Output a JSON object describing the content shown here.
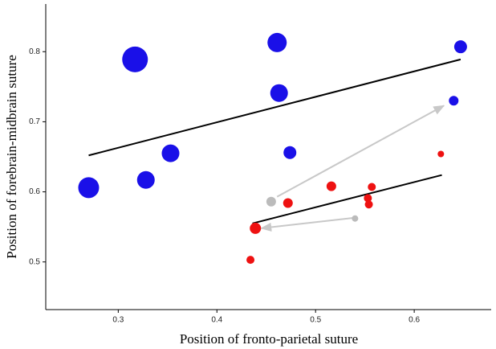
{
  "chart_data": {
    "type": "scatter",
    "x_label": "Position of fronto-parietal suture",
    "y_label": "Position of forebrain-midbrain suture",
    "xlim": [
      0.2265,
      0.678
    ],
    "ylim": [
      0.432,
      0.868
    ],
    "xticks": [
      0.3,
      0.4,
      0.5,
      0.6
    ],
    "yticks": [
      0.5,
      0.6,
      0.7,
      0.8
    ],
    "grid": false,
    "series": [
      {
        "color": "#1a10e8",
        "x": [
          0.27,
          0.317,
          0.328,
          0.353,
          0.461,
          0.463,
          0.474,
          0.647,
          0.64
        ],
        "values": [
          0.606,
          0.789,
          0.617,
          0.655,
          0.813,
          0.741,
          0.656,
          0.807,
          0.73
        ],
        "sizes": [
          13,
          16,
          11,
          11,
          12,
          11,
          8,
          8,
          6
        ]
      },
      {
        "color": "#ee1111",
        "x": [
          0.439,
          0.472,
          0.516,
          0.557,
          0.553,
          0.554,
          0.627,
          0.434
        ],
        "values": [
          0.548,
          0.584,
          0.608,
          0.607,
          0.591,
          0.582,
          0.654,
          0.503
        ],
        "sizes": [
          7,
          6,
          6,
          5,
          5,
          5,
          4,
          5
        ]
      },
      {
        "color": "#bbbbbb",
        "x": [
          0.455,
          0.54
        ],
        "values": [
          0.586,
          0.562
        ],
        "sizes": [
          6,
          4
        ]
      }
    ],
    "trend_lines": [
      {
        "color": "#000000",
        "x": [
          0.27,
          0.647
        ],
        "values": [
          0.652,
          0.789
        ]
      },
      {
        "color": "#000000",
        "x": [
          0.436,
          0.628
        ],
        "values": [
          0.555,
          0.624
        ]
      }
    ],
    "arrows": [
      {
        "color": "#c8c8c8",
        "x": [
          0.461,
          0.63
        ],
        "values": [
          0.593,
          0.723
        ]
      },
      {
        "color": "#c8c8c8",
        "x": [
          0.539,
          0.445
        ],
        "values": [
          0.563,
          0.548
        ]
      }
    ]
  }
}
